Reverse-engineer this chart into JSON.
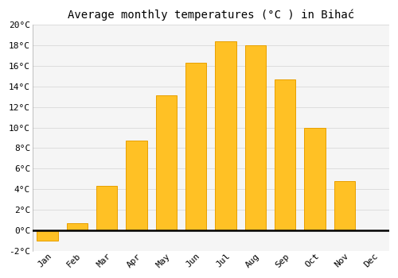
{
  "title": "Average monthly temperatures (°C ) in Bihać",
  "months": [
    "Jan",
    "Feb",
    "Mar",
    "Apr",
    "May",
    "Jun",
    "Jul",
    "Aug",
    "Sep",
    "Oct",
    "Nov",
    "Dec"
  ],
  "values": [
    -1.0,
    0.7,
    4.3,
    8.7,
    13.1,
    16.3,
    18.4,
    18.0,
    14.7,
    10.0,
    4.8,
    0.0
  ],
  "bar_color_face": "#FFC125",
  "bar_color_edge": "#E8A000",
  "background_color": "#ffffff",
  "plot_bg_color": "#f5f5f5",
  "grid_color": "#dddddd",
  "ylim": [
    -2,
    20
  ],
  "yticks": [
    -2,
    0,
    2,
    4,
    6,
    8,
    10,
    12,
    14,
    16,
    18,
    20
  ],
  "title_fontsize": 10,
  "tick_fontsize": 8,
  "axis_line_color": "#000000",
  "bar_width": 0.7
}
